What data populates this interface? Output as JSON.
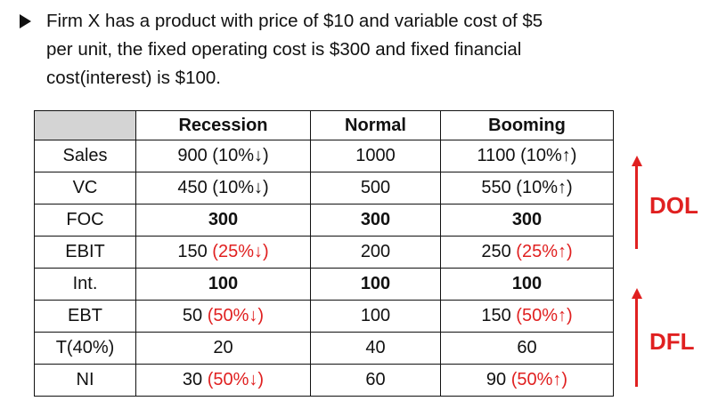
{
  "intro": {
    "line1": "Firm X has a product with price of $10 and variable cost of $5",
    "line2": "per unit, the fixed operating cost is $300 and fixed financial",
    "line3": "cost(interest) is $100."
  },
  "table": {
    "headers": [
      "",
      "Recession",
      "Normal",
      "Booming"
    ],
    "rows": [
      {
        "label": "Sales",
        "recession": "900 (10%↓)",
        "recession_note": "",
        "normal": "1000",
        "booming": "1100 (10%↑)",
        "booming_note": "",
        "bold": false
      },
      {
        "label": "VC",
        "recession": "450 (10%↓)",
        "recession_note": "",
        "normal": "500",
        "booming": "550 (10%↑)",
        "booming_note": "",
        "bold": false
      },
      {
        "label": "FOC",
        "recession": "300",
        "recession_note": "",
        "normal": "300",
        "booming": "300",
        "booming_note": "",
        "bold": true
      },
      {
        "label": "EBIT",
        "recession": "150 ",
        "recession_note": "(25%↓)",
        "normal": "200",
        "booming": "250 ",
        "booming_note": "(25%↑)",
        "bold": false
      },
      {
        "label": "Int.",
        "recession": "100",
        "recession_note": "",
        "normal": "100",
        "booming": "100",
        "booming_note": "",
        "bold": true
      },
      {
        "label": "EBT",
        "recession": "50 ",
        "recession_note": "(50%↓)",
        "normal": "100",
        "booming": "150 ",
        "booming_note": "(50%↑)",
        "bold": false
      },
      {
        "label": "T(40%)",
        "recession": "20",
        "recession_note": "",
        "normal": "40",
        "booming": "60",
        "booming_note": "",
        "bold": false
      },
      {
        "label": "NI",
        "recession": "30 ",
        "recession_note": "(50%↓)",
        "normal": "60",
        "booming": "90 ",
        "booming_note": "(50%↑)",
        "bold": false
      }
    ]
  },
  "annotations": {
    "dol_label": "DOL",
    "dfl_label": "DFL",
    "accent_color": "#e02020"
  }
}
